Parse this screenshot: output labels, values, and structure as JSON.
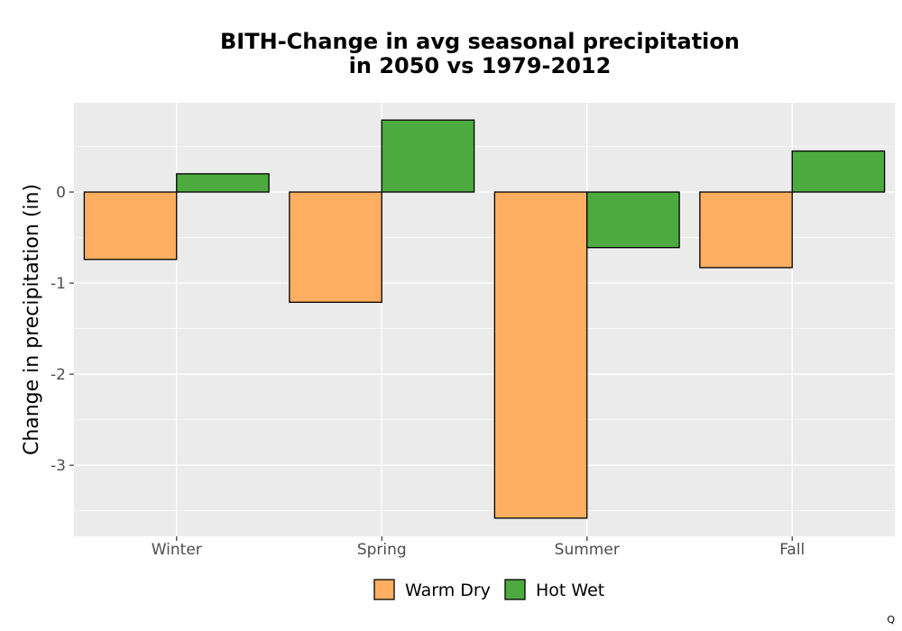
{
  "chart_data": {
    "type": "bar",
    "title": [
      "BITH-Change in avg seasonal precipitation",
      "in 2050 vs 1979-2012"
    ],
    "xlabel": "",
    "ylabel": "Change in precipitation (in)",
    "categories": [
      "Winter",
      "Spring",
      "Summer",
      "Fall"
    ],
    "series": [
      {
        "name": "Warm Dry",
        "color": "#fdae61",
        "values": [
          -0.74,
          -1.21,
          -3.58,
          -0.83
        ]
      },
      {
        "name": "Hot Wet",
        "color": "#4daa3f",
        "values": [
          0.2,
          0.79,
          -0.61,
          0.45
        ]
      }
    ],
    "ylim": [
      -3.78,
      0.98
    ],
    "yticks": [
      0,
      -1,
      -2,
      -3
    ],
    "ytick_labels": [
      "0",
      "-1",
      "-2",
      "-3"
    ],
    "grid": true,
    "legend_position": "bottom"
  },
  "corner_mark": "Q"
}
